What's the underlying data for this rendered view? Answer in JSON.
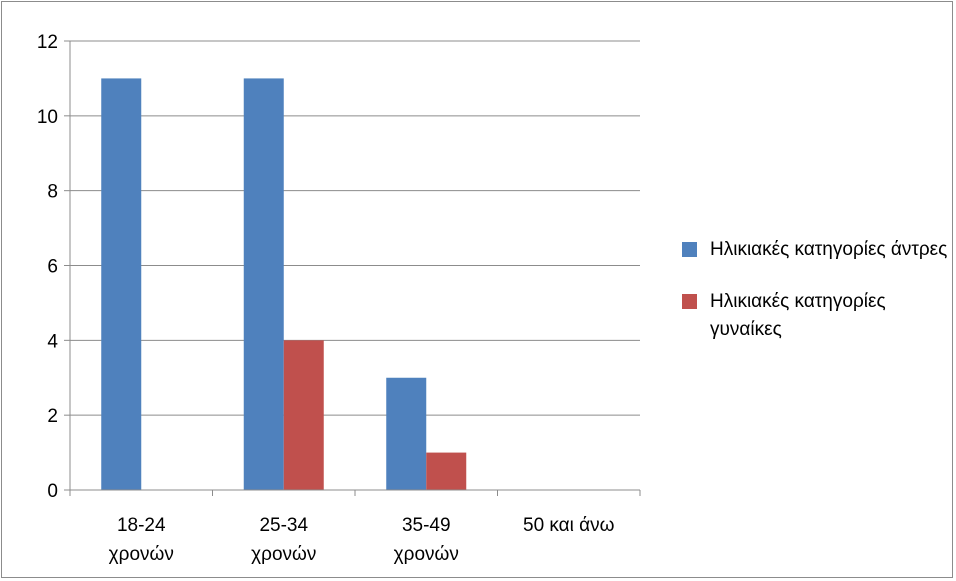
{
  "chart_data": {
    "type": "bar",
    "categories": [
      [
        "18-24",
        "χρονών"
      ],
      [
        "25-34",
        "χρονών"
      ],
      [
        "35-49",
        "χρονών"
      ],
      [
        "50 και άνω"
      ]
    ],
    "series": [
      {
        "name": "Ηλικιακές κατηγορίες άντρες",
        "values": [
          11,
          11,
          3,
          0
        ],
        "color": "#4F81BD"
      },
      {
        "name": "Ηλικιακές κατηγορίες γυναίκες",
        "values": [
          0,
          4,
          1,
          0
        ],
        "color": "#C0504D"
      }
    ],
    "yticks": [
      "0",
      "2",
      "4",
      "6",
      "8",
      "10",
      "12"
    ],
    "ylim": [
      0,
      12
    ],
    "grid": true,
    "legend_position": "right"
  }
}
